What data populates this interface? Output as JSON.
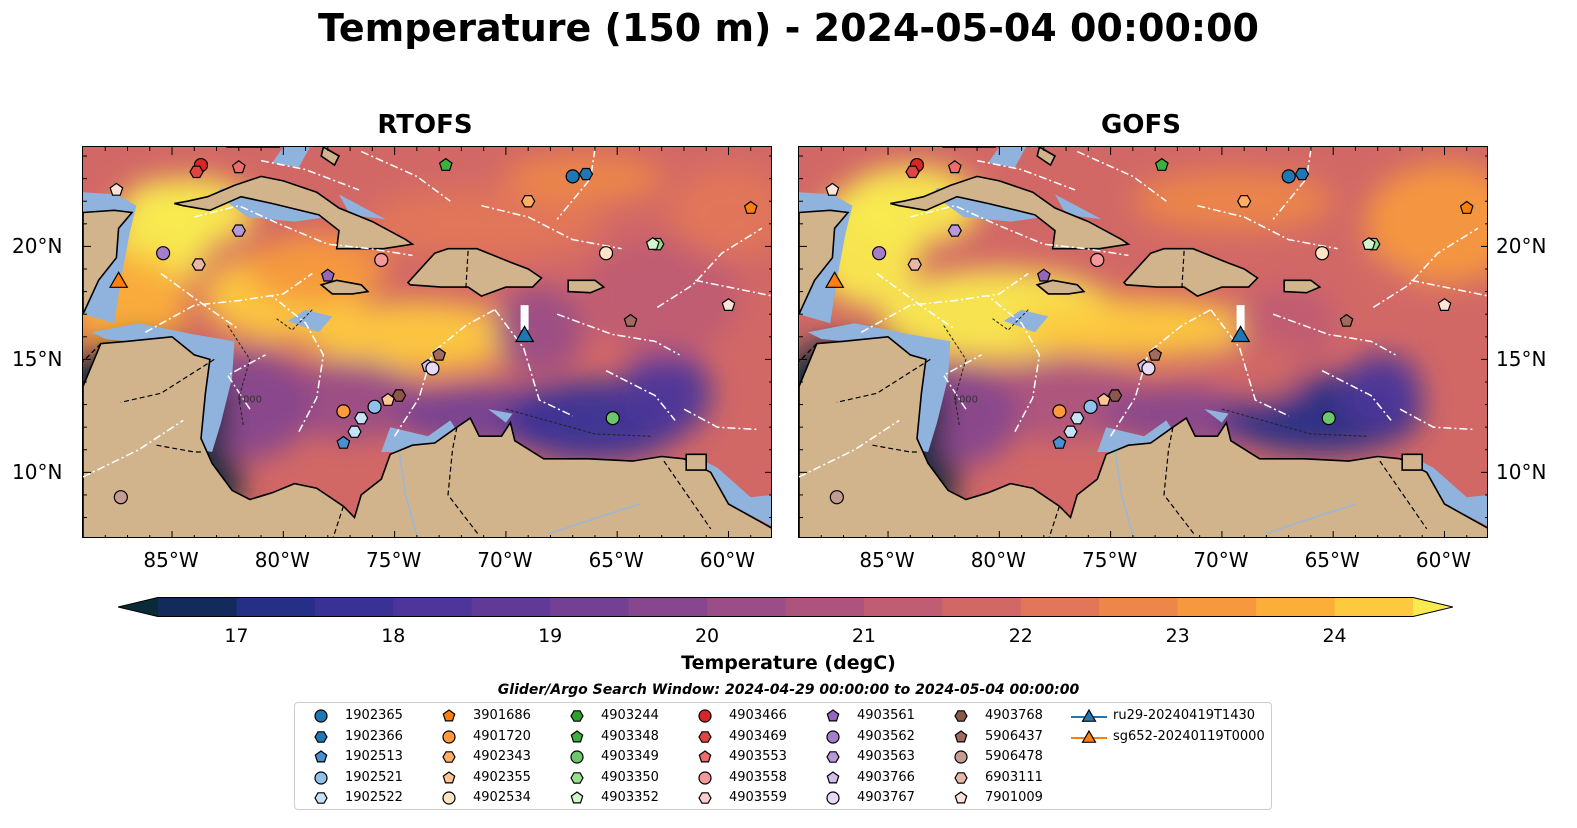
{
  "title": "Temperature (150 m) - 2024-05-04 00:00:00",
  "panels": [
    {
      "title": "RTOFS",
      "glider_x": 0.64
    },
    {
      "title": "GOFS",
      "glider_x": 0.64
    }
  ],
  "xticks": [
    "85°W",
    "80°W",
    "75°W",
    "70°W",
    "65°W",
    "60°W"
  ],
  "yticks": [
    "20°N",
    "15°N",
    "10°N"
  ],
  "contour_label": "1000",
  "colorbar": {
    "label": "Temperature (degC)",
    "ticks": [
      "17",
      "18",
      "19",
      "20",
      "21",
      "22",
      "23",
      "24"
    ],
    "min": 16.5,
    "max": 24.5,
    "colors": [
      "#0b2a38",
      "#132b5b",
      "#262f86",
      "#3a3196",
      "#4d3599",
      "#613a97",
      "#744093",
      "#87468d",
      "#9a4d86",
      "#ad547e",
      "#c05d73",
      "#d26866",
      "#e17658",
      "#ec8649",
      "#f6983e",
      "#fbae3a",
      "#fdc93f",
      "#f9ea4f"
    ]
  },
  "search_window": "Glider/Argo Search Window: 2024-04-29 00:00:00 to 2024-05-04 00:00:00",
  "legend": [
    {
      "label": "1902365",
      "color": "#1f77b4",
      "marker": "circle"
    },
    {
      "label": "1902366",
      "color": "#1f77b4",
      "marker": "hexagon"
    },
    {
      "label": "1902513",
      "color": "#4a90d0",
      "marker": "pentagon"
    },
    {
      "label": "1902521",
      "color": "#8fc1ea",
      "marker": "circle"
    },
    {
      "label": "1902522",
      "color": "#c6e2f7",
      "marker": "hexagon"
    },
    {
      "label": "3901686",
      "color": "#ff7f0e",
      "marker": "pentagon"
    },
    {
      "label": "4901720",
      "color": "#ff9a3c",
      "marker": "circle"
    },
    {
      "label": "4902343",
      "color": "#ffb066",
      "marker": "hexagon"
    },
    {
      "label": "4902355",
      "color": "#ffc48f",
      "marker": "pentagon"
    },
    {
      "label": "4902534",
      "color": "#ffe3c7",
      "marker": "circle"
    },
    {
      "label": "4903244",
      "color": "#2ca02c",
      "marker": "hexagon"
    },
    {
      "label": "4903348",
      "color": "#3fb03f",
      "marker": "pentagon"
    },
    {
      "label": "4903349",
      "color": "#6cc76c",
      "marker": "circle"
    },
    {
      "label": "4903350",
      "color": "#98df8a",
      "marker": "hexagon"
    },
    {
      "label": "4903352",
      "color": "#d3f5cd",
      "marker": "pentagon"
    },
    {
      "label": "4903466",
      "color": "#d62728",
      "marker": "circle"
    },
    {
      "label": "4903469",
      "color": "#e04545",
      "marker": "hexagon"
    },
    {
      "label": "4903553",
      "color": "#ee6b6b",
      "marker": "pentagon"
    },
    {
      "label": "4903558",
      "color": "#f59a9a",
      "marker": "circle"
    },
    {
      "label": "4903559",
      "color": "#fbcdcd",
      "marker": "hexagon"
    },
    {
      "label": "4903561",
      "color": "#9467bd",
      "marker": "pentagon"
    },
    {
      "label": "4903562",
      "color": "#a57ecb",
      "marker": "circle"
    },
    {
      "label": "4903563",
      "color": "#b898d8",
      "marker": "hexagon"
    },
    {
      "label": "4903766",
      "color": "#d2bfed",
      "marker": "pentagon"
    },
    {
      "label": "4903767",
      "color": "#e8d9f7",
      "marker": "circle"
    },
    {
      "label": "4903768",
      "color": "#8c564b",
      "marker": "hexagon"
    },
    {
      "label": "5906437",
      "color": "#a06a5e",
      "marker": "pentagon"
    },
    {
      "label": "5906478",
      "color": "#c49c94",
      "marker": "circle"
    },
    {
      "label": "6903111",
      "color": "#e8b7a9",
      "marker": "hexagon"
    },
    {
      "label": "7901009",
      "color": "#fde3d8",
      "marker": "pentagon"
    },
    {
      "label": "ru29-20240419T1430",
      "color": "#1f77b4",
      "marker": "triangle"
    },
    {
      "label": "sg652-20240119T0000",
      "color": "#ff7f0e",
      "marker": "triangle"
    }
  ]
}
